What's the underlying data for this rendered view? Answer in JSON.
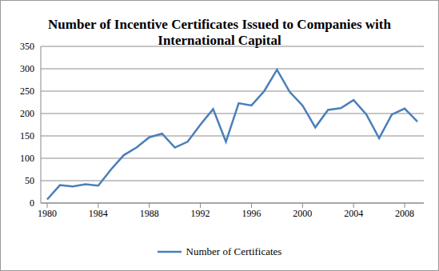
{
  "chart_data": {
    "type": "line",
    "title": "Number of Incentive Certificates Issued to Companies with International Capital",
    "x": [
      1980,
      1981,
      1982,
      1983,
      1984,
      1985,
      1986,
      1987,
      1988,
      1989,
      1990,
      1991,
      1992,
      1993,
      1994,
      1995,
      1996,
      1997,
      1998,
      1999,
      2000,
      2001,
      2002,
      2003,
      2004,
      2005,
      2006,
      2007,
      2008,
      2009
    ],
    "series": [
      {
        "name": "Number of Certificates",
        "color": "#4a7ebb",
        "values": [
          8,
          40,
          37,
          42,
          39,
          75,
          107,
          124,
          147,
          155,
          124,
          137,
          175,
          210,
          137,
          223,
          218,
          250,
          298,
          248,
          218,
          169,
          208,
          212,
          230,
          198,
          145,
          198,
          211,
          182
        ]
      }
    ],
    "xlim": [
      1979.5,
      2009.5
    ],
    "xticks": [
      1980,
      1984,
      1988,
      1992,
      1996,
      2000,
      2004,
      2008
    ],
    "ylim": [
      0,
      350
    ],
    "yticks": [
      0,
      50,
      100,
      150,
      200,
      250,
      300,
      350
    ],
    "grid": true,
    "legend": "bottom"
  }
}
